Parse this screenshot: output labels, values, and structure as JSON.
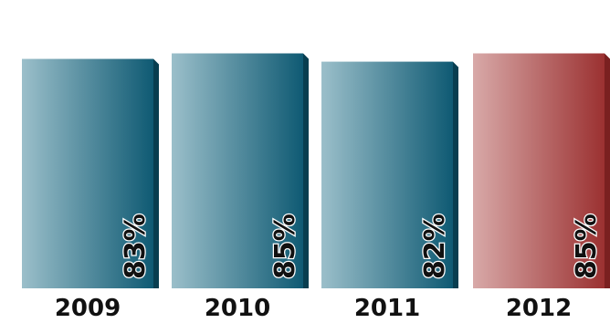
{
  "chart_data": {
    "type": "bar",
    "title": "",
    "xlabel": "",
    "ylabel": "",
    "categories": [
      "2009",
      "2010",
      "2011",
      "2012"
    ],
    "values": [
      83,
      85,
      82,
      85
    ],
    "value_labels": [
      "83%",
      "85%",
      "82%",
      "85%"
    ],
    "series_colors": [
      "#0f5a73",
      "#0f5a73",
      "#0f5a73",
      "#9b3131"
    ],
    "highlight_category": "2012",
    "grid": false,
    "legend": "none",
    "unit": "%"
  }
}
